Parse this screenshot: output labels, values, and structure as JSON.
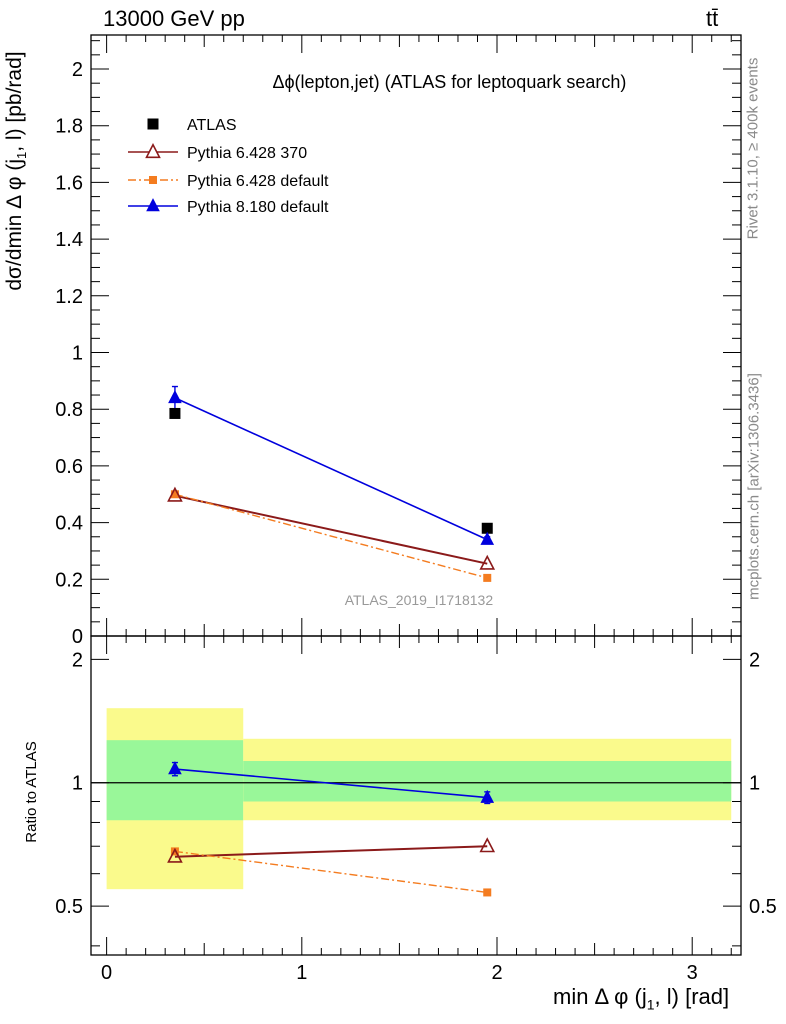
{
  "header": {
    "energy_label": "13000 GeV pp",
    "process_label": "tt̄"
  },
  "side_labels": {
    "rivet": "Rivet 3.1.10, ≥ 400k events",
    "mcplots": "mcplots.cern.ch [arXiv:1306.3436]"
  },
  "colors": {
    "atlas": "#000000",
    "pythia6_370": "#8b1a1a",
    "pythia6_default": "#f47c20",
    "pythia8_default": "#0000dd",
    "band_inner": "#99f799",
    "band_outer": "#fafa8c"
  },
  "chart_data": [
    {
      "type": "line",
      "title": "Δϕ(lepton,jet) (ATLAS for leptoquark search)",
      "ylabel": "dσ/dmin Δ ϕ (j1, l) [pb/rad]",
      "watermark": "ATLAS_2019_I1718132",
      "xlim": [
        -0.08,
        3.25
      ],
      "ylim": [
        0,
        2.12
      ],
      "yticks": [
        0,
        0.2,
        0.4,
        0.6,
        0.8,
        1,
        1.2,
        1.4,
        1.6,
        1.8,
        2
      ],
      "ytick_labels": [
        "0",
        "0.2",
        "0.4",
        "0.6",
        "0.8",
        "1",
        "1.2",
        "1.4",
        "1.6",
        "1.8",
        "2"
      ],
      "legend_position": "top-left",
      "series": [
        {
          "name": "ATLAS",
          "style": "square-marker",
          "x": [
            0.35,
            1.95
          ],
          "y": [
            0.785,
            0.38
          ]
        },
        {
          "name": "Pythia 6.428 370",
          "style": "open-triangle-line",
          "x": [
            0.35,
            1.95
          ],
          "y": [
            0.495,
            0.255
          ]
        },
        {
          "name": "Pythia 6.428 default",
          "style": "dashdot-square",
          "x": [
            0.35,
            1.95
          ],
          "y": [
            0.5,
            0.205
          ]
        },
        {
          "name": "Pythia 8.180 default",
          "style": "filled-triangle-line",
          "x": [
            0.35,
            1.95
          ],
          "y": [
            0.84,
            0.34
          ],
          "yerr": [
            0.04,
            0.01
          ]
        }
      ]
    },
    {
      "type": "line",
      "ylabel": "Ratio to ATLAS",
      "xlabel": "min Δ ϕ (j1, l) [rad]",
      "xlim": [
        -0.08,
        3.25
      ],
      "xticks": [
        0,
        1,
        2,
        3
      ],
      "xtick_labels": [
        "0",
        "1",
        "2",
        "3"
      ],
      "ylim": [
        0.38,
        2.28
      ],
      "yticks": [
        0.5,
        1,
        2
      ],
      "ytick_labels": [
        "0.5",
        "1",
        "2"
      ],
      "bands": [
        {
          "x": [
            0,
            0.7
          ],
          "inner": [
            0.81,
            1.27
          ],
          "outer": [
            0.55,
            1.52
          ]
        },
        {
          "x": [
            0.7,
            3.2
          ],
          "inner": [
            0.9,
            1.13
          ],
          "outer": [
            0.81,
            1.28
          ]
        }
      ],
      "series": [
        {
          "name": "Pythia 6.428 370",
          "x": [
            0.35,
            1.95
          ],
          "y": [
            0.66,
            0.7
          ]
        },
        {
          "name": "Pythia 6.428 default",
          "x": [
            0.35,
            1.95
          ],
          "y": [
            0.68,
            0.54
          ]
        },
        {
          "name": "Pythia 8.180 default",
          "x": [
            0.35,
            1.95
          ],
          "y": [
            1.08,
            0.92
          ],
          "yerr": [
            0.04,
            0.03
          ]
        }
      ]
    }
  ]
}
